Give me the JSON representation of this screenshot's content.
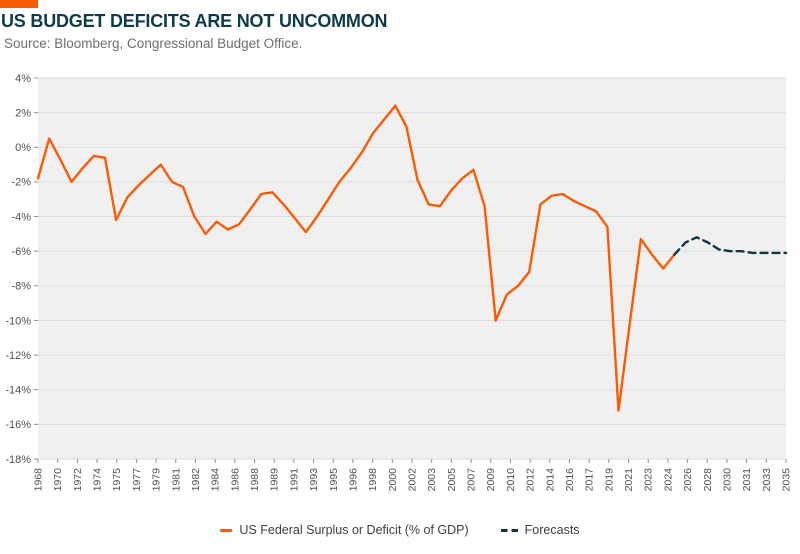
{
  "header": {
    "title": "US BUDGET DEFICITS ARE NOT UNCOMMON",
    "source": "Source: Bloomberg, Congressional Budget Office."
  },
  "legend": {
    "items": [
      {
        "label": "US Federal Surplus or Deficit (% of GDP)",
        "swatch": "orange-dash"
      },
      {
        "label": "Forecasts",
        "swatch": "navy-double-dash"
      }
    ]
  },
  "colors": {
    "orange": "#FA5B05",
    "navy": "#12333F",
    "title": "#0E3A4B",
    "source_text": "#6E6E71",
    "legend_text": "#3C4043",
    "axis_text": "#4F5355",
    "gridline": "#DCDCDC",
    "plot_bg": "#F0F0F1",
    "tick": "#909090"
  },
  "chart_data": {
    "type": "line",
    "title": "US BUDGET DEFICITS ARE NOT UNCOMMON",
    "xlabel": "",
    "ylabel": "US Federal Surplus or Deficit (% of GDP)",
    "ylim": [
      -18,
      4
    ],
    "x_range": [
      1968,
      2035
    ],
    "grid": true,
    "legend_position": "bottom",
    "y_ticks": [
      "4%",
      "2%",
      "0%",
      "-2%",
      "-4%",
      "-6%",
      "-8%",
      "-10%",
      "-12%",
      "-14%",
      "-16%",
      "-18%"
    ],
    "x_tick_labels": [
      "1968",
      "1970",
      "1972",
      "1974",
      "1975",
      "1977",
      "1979",
      "1981",
      "1982",
      "1984",
      "1986",
      "1988",
      "1989",
      "1991",
      "1993",
      "1995",
      "1996",
      "1998",
      "2000",
      "2002",
      "2003",
      "2005",
      "2007",
      "2009",
      "2010",
      "2012",
      "2014",
      "2016",
      "2017",
      "2019",
      "2021",
      "2023",
      "2024",
      "2026",
      "2028",
      "2030",
      "2031",
      "2033",
      "2035"
    ],
    "series": [
      {
        "name": "US Federal Surplus or Deficit (% of GDP)",
        "style": "solid",
        "color": "#FA5B05",
        "x": [
          1968,
          1969,
          1970,
          1971,
          1972,
          1973,
          1974,
          1975,
          1976,
          1977,
          1978,
          1979,
          1980,
          1981,
          1982,
          1983,
          1984,
          1985,
          1986,
          1987,
          1988,
          1989,
          1990,
          1991,
          1992,
          1993,
          1994,
          1995,
          1996,
          1997,
          1998,
          1999,
          2000,
          2001,
          2002,
          2003,
          2004,
          2005,
          2006,
          2007,
          2008,
          2009,
          2010,
          2011,
          2012,
          2013,
          2014,
          2015,
          2016,
          2017,
          2018,
          2019,
          2020,
          2021,
          2022,
          2023,
          2024,
          2025
        ],
        "values": [
          -1.8,
          0.5,
          -0.7,
          -2.0,
          -1.2,
          -0.5,
          -0.6,
          -4.2,
          -2.9,
          -2.2,
          -1.6,
          -1.0,
          -2.0,
          -2.3,
          -4.0,
          -5.0,
          -4.3,
          -4.75,
          -4.45,
          -3.6,
          -2.7,
          -2.6,
          -3.3,
          -4.1,
          -4.9,
          -4.0,
          -3.0,
          -2.0,
          -1.2,
          -0.3,
          0.8,
          1.6,
          2.4,
          1.2,
          -1.9,
          -3.3,
          -3.4,
          -2.5,
          -1.8,
          -1.3,
          -3.4,
          -10.0,
          -8.5,
          -8.0,
          -7.2,
          -3.3,
          -2.8,
          -2.7,
          -3.1,
          -3.4,
          -3.7,
          -4.6,
          -15.2,
          -10.2,
          -5.3,
          -6.2,
          -7.0,
          -6.2
        ]
      },
      {
        "name": "Forecasts",
        "style": "dashed",
        "color": "#12333F",
        "x": [
          2025,
          2026,
          2027,
          2028,
          2029,
          2030,
          2031,
          2032,
          2033,
          2034,
          2035
        ],
        "values": [
          -6.2,
          -5.5,
          -5.2,
          -5.5,
          -5.9,
          -6.0,
          -6.0,
          -6.1,
          -6.1,
          -6.1,
          -6.1
        ]
      }
    ]
  }
}
